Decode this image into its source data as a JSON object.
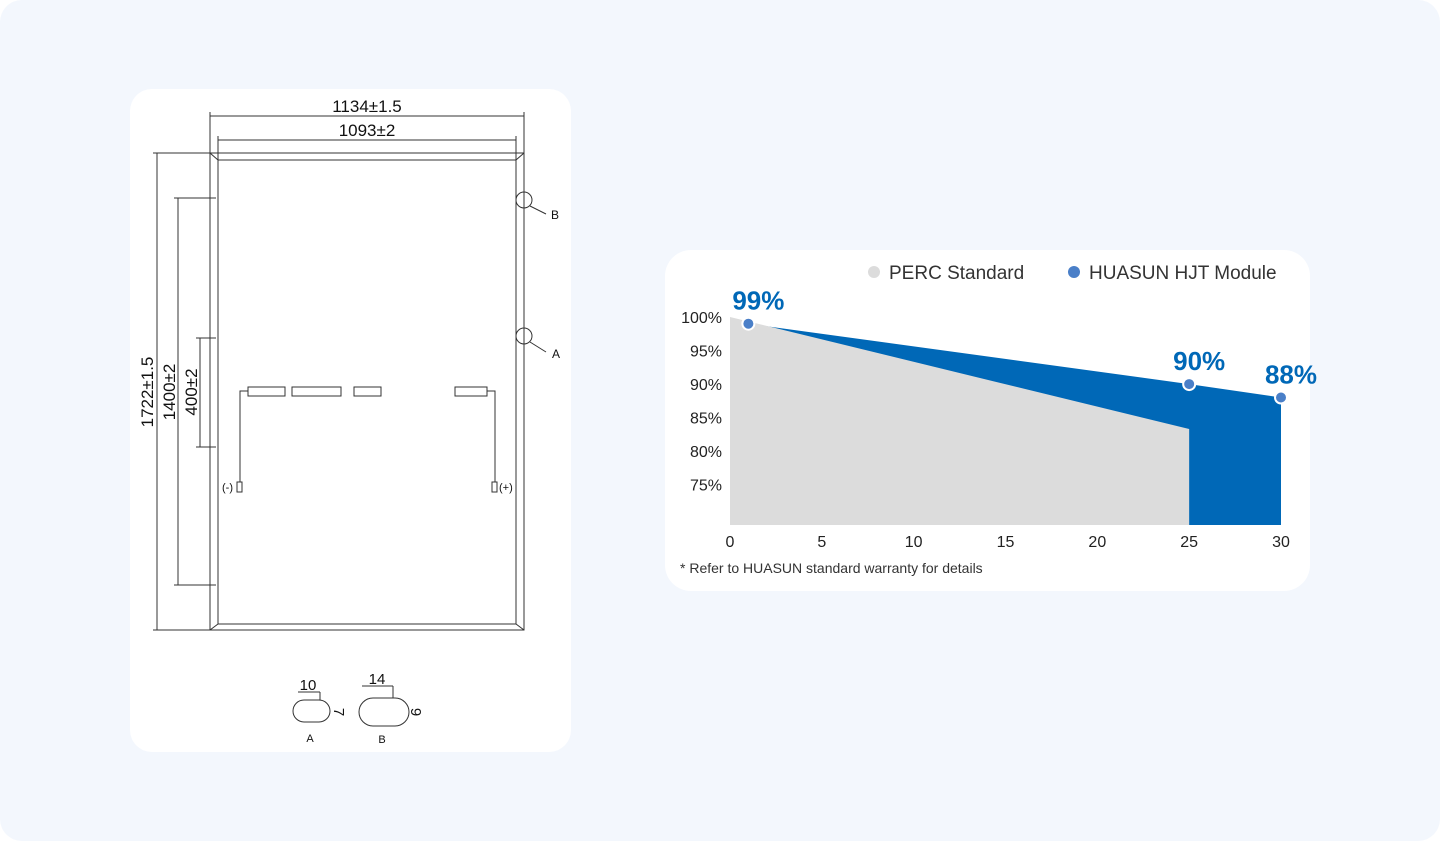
{
  "drawing": {
    "width_outer": "1134±1.5",
    "width_inner": "1093±2",
    "height_outer": "1722±1.5",
    "mount_span": "1400±2",
    "mount_span_short": "400±2",
    "detail_b_marker": "B",
    "detail_a_marker": "A",
    "negative": "(-)",
    "positive": "(+)",
    "hole_a": {
      "width": "10",
      "height": "7",
      "label": "A"
    },
    "hole_b": {
      "width": "14",
      "height": "9",
      "label": "B"
    }
  },
  "chart_data": {
    "type": "area",
    "note": "* Refer to HUASUN standard warranty for details",
    "xlim": [
      0,
      30
    ],
    "xticks": [
      0,
      5,
      10,
      15,
      20,
      25,
      30
    ],
    "ylim": [
      69,
      100
    ],
    "yticks": [
      {
        "value": 100,
        "label": "100%"
      },
      {
        "value": 95,
        "label": "95%"
      },
      {
        "value": 90,
        "label": "90%"
      },
      {
        "value": 85,
        "label": "85%"
      },
      {
        "value": 80,
        "label": "80%"
      },
      {
        "value": 75,
        "label": "75%"
      }
    ],
    "series": [
      {
        "name": "HUASUN HJT Module",
        "color": "#0068b7",
        "marker_color": "#4a7fc8",
        "x": [
          1,
          25,
          30
        ],
        "values": [
          99,
          90,
          88
        ],
        "value_labels": [
          "99%",
          "90%",
          "88%"
        ]
      },
      {
        "name": "PERC Standard",
        "color": "#dcdcdc",
        "x": [
          0,
          25
        ],
        "values": [
          100,
          83.3
        ]
      }
    ]
  }
}
